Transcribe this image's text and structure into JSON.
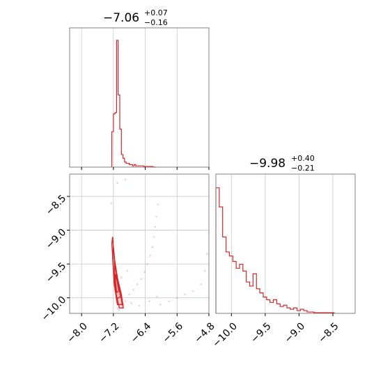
{
  "chart_data": [
    {
      "panel": "p1-marginal",
      "type": "histogram",
      "title": {
        "median": "−7.06",
        "plus": "+0.07",
        "minus": "−0.16"
      },
      "xlim": [
        -8.3,
        -4.8
      ],
      "xticks": [
        -8.0,
        -7.2,
        -6.4,
        -5.6,
        -4.8
      ],
      "grid": true,
      "color": "#d62728",
      "bins": [
        {
          "x": -7.24,
          "count": 0.28
        },
        {
          "x": -7.2,
          "count": 0.42
        },
        {
          "x": -7.16,
          "count": 0.43
        },
        {
          "x": -7.12,
          "count": 1.0
        },
        {
          "x": -7.08,
          "count": 0.57
        },
        {
          "x": -7.04,
          "count": 0.3
        },
        {
          "x": -7.0,
          "count": 0.1
        },
        {
          "x": -6.96,
          "count": 0.07
        },
        {
          "x": -6.92,
          "count": 0.04
        },
        {
          "x": -6.88,
          "count": 0.03
        },
        {
          "x": -6.84,
          "count": 0.03
        },
        {
          "x": -6.8,
          "count": 0.02
        },
        {
          "x": -6.76,
          "count": 0.02
        },
        {
          "x": -6.72,
          "count": 0.01
        },
        {
          "x": -6.68,
          "count": 0.02
        },
        {
          "x": -6.64,
          "count": 0.01
        },
        {
          "x": -6.6,
          "count": 0.01
        },
        {
          "x": -6.56,
          "count": 0.01
        },
        {
          "x": -6.52,
          "count": 0.01
        },
        {
          "x": -6.48,
          "count": 0.01
        },
        {
          "x": -6.44,
          "count": 0.005
        },
        {
          "x": -6.4,
          "count": 0.005
        },
        {
          "x": -6.36,
          "count": 0.005
        },
        {
          "x": -6.32,
          "count": 0.005
        },
        {
          "x": -6.28,
          "count": 0.005
        },
        {
          "x": -6.24,
          "count": 0.005
        },
        {
          "x": -6.2,
          "count": 0.0
        },
        {
          "x": -6.16,
          "count": 0.0
        }
      ],
      "bin_width": 0.04
    },
    {
      "panel": "p2-marginal",
      "type": "histogram",
      "title": {
        "median": "−9.98",
        "plus": "+0.40",
        "minus": "−0.21"
      },
      "xlim": [
        -10.23,
        -8.17
      ],
      "xticks": [
        -10.0,
        -9.5,
        -9.0,
        -8.5
      ],
      "grid": true,
      "color": "#d62728",
      "bins": [
        {
          "x": -10.23,
          "count": 0.92
        },
        {
          "x": -10.18,
          "count": 0.78
        },
        {
          "x": -10.13,
          "count": 0.56
        },
        {
          "x": -10.08,
          "count": 0.45
        },
        {
          "x": -10.03,
          "count": 0.42
        },
        {
          "x": -9.98,
          "count": 0.38
        },
        {
          "x": -9.93,
          "count": 0.33
        },
        {
          "x": -9.88,
          "count": 0.36
        },
        {
          "x": -9.83,
          "count": 0.31
        },
        {
          "x": -9.78,
          "count": 0.23
        },
        {
          "x": -9.73,
          "count": 0.2
        },
        {
          "x": -9.68,
          "count": 0.29
        },
        {
          "x": -9.63,
          "count": 0.18
        },
        {
          "x": -9.58,
          "count": 0.15
        },
        {
          "x": -9.53,
          "count": 0.12
        },
        {
          "x": -9.48,
          "count": 0.1
        },
        {
          "x": -9.43,
          "count": 0.08
        },
        {
          "x": -9.38,
          "count": 0.1
        },
        {
          "x": -9.33,
          "count": 0.07
        },
        {
          "x": -9.28,
          "count": 0.05
        },
        {
          "x": -9.23,
          "count": 0.06
        },
        {
          "x": -9.18,
          "count": 0.04
        },
        {
          "x": -9.13,
          "count": 0.03
        },
        {
          "x": -9.08,
          "count": 0.04
        },
        {
          "x": -9.03,
          "count": 0.02
        },
        {
          "x": -8.98,
          "count": 0.03
        },
        {
          "x": -8.93,
          "count": 0.02
        },
        {
          "x": -8.88,
          "count": 0.01
        },
        {
          "x": -8.83,
          "count": 0.01
        },
        {
          "x": -8.78,
          "count": 0.005
        },
        {
          "x": -8.73,
          "count": 0.005
        },
        {
          "x": -8.68,
          "count": 0.005
        },
        {
          "x": -8.63,
          "count": 0.005
        },
        {
          "x": -8.58,
          "count": 0.005
        },
        {
          "x": -8.53,
          "count": 0.005
        }
      ],
      "bin_width": 0.05
    },
    {
      "panel": "joint",
      "type": "scatter",
      "xlim": [
        -8.3,
        -4.8
      ],
      "ylim": [
        -10.23,
        -8.17
      ],
      "xticks": [
        -8.0,
        -7.2,
        -6.4,
        -5.6,
        -4.8
      ],
      "yticks": [
        -10.0,
        -9.5,
        -9.0,
        -8.5
      ],
      "grid": true,
      "color": "#d62728",
      "points": [
        [
          -7.22,
          -9.12
        ],
        [
          -7.2,
          -9.3
        ],
        [
          -7.19,
          -9.55
        ],
        [
          -7.17,
          -9.75
        ],
        [
          -7.15,
          -9.9
        ],
        [
          -7.12,
          -10.05
        ],
        [
          -7.1,
          -10.15
        ],
        [
          -7.05,
          -10.18
        ],
        [
          -6.98,
          -10.12
        ],
        [
          -6.9,
          -10.05
        ],
        [
          -6.8,
          -9.95
        ],
        [
          -6.7,
          -9.88
        ],
        [
          -6.6,
          -9.8
        ],
        [
          -6.5,
          -9.72
        ],
        [
          -6.42,
          -9.62
        ],
        [
          -6.35,
          -9.5
        ],
        [
          -6.28,
          -9.38
        ],
        [
          -6.22,
          -9.25
        ],
        [
          -6.18,
          -9.1
        ],
        [
          -6.15,
          -8.95
        ],
        [
          -6.12,
          -8.8
        ],
        [
          -6.08,
          -8.62
        ],
        [
          -6.02,
          -10.1
        ],
        [
          -5.8,
          -10.05
        ],
        [
          -5.6,
          -10.0
        ],
        [
          -5.4,
          -9.95
        ],
        [
          -5.2,
          -9.9
        ],
        [
          -5.0,
          -9.8
        ],
        [
          -4.9,
          -9.6
        ],
        [
          -4.85,
          -9.35
        ],
        [
          -7.25,
          -8.6
        ],
        [
          -7.1,
          -8.3
        ],
        [
          -6.9,
          -8.25
        ],
        [
          -6.95,
          -10.1
        ],
        [
          -6.75,
          -10.08
        ],
        [
          -6.55,
          -10.12
        ],
        [
          -6.3,
          -10.05
        ],
        [
          -6.1,
          -9.98
        ],
        [
          -7.0,
          -9.7
        ],
        [
          -6.85,
          -9.6
        ]
      ],
      "contours": [
        [
          [
            -7.22,
            -9.1
          ],
          [
            -7.18,
            -9.4
          ],
          [
            -7.1,
            -9.7
          ],
          [
            -7.0,
            -9.95
          ],
          [
            -6.95,
            -10.15
          ],
          [
            -7.05,
            -10.15
          ],
          [
            -7.15,
            -9.9
          ],
          [
            -7.2,
            -9.55
          ],
          [
            -7.24,
            -9.2
          ]
        ],
        [
          [
            -7.2,
            -9.25
          ],
          [
            -7.15,
            -9.55
          ],
          [
            -7.05,
            -9.85
          ],
          [
            -6.98,
            -10.1
          ],
          [
            -7.1,
            -10.1
          ],
          [
            -7.18,
            -9.8
          ],
          [
            -7.22,
            -9.4
          ]
        ],
        [
          [
            -7.17,
            -9.45
          ],
          [
            -7.1,
            -9.72
          ],
          [
            -7.02,
            -9.98
          ],
          [
            -7.12,
            -10.02
          ],
          [
            -7.16,
            -9.75
          ]
        ],
        [
          [
            -7.14,
            -9.65
          ],
          [
            -7.06,
            -9.9
          ],
          [
            -7.12,
            -9.92
          ],
          [
            -7.15,
            -9.75
          ]
        ]
      ]
    }
  ]
}
